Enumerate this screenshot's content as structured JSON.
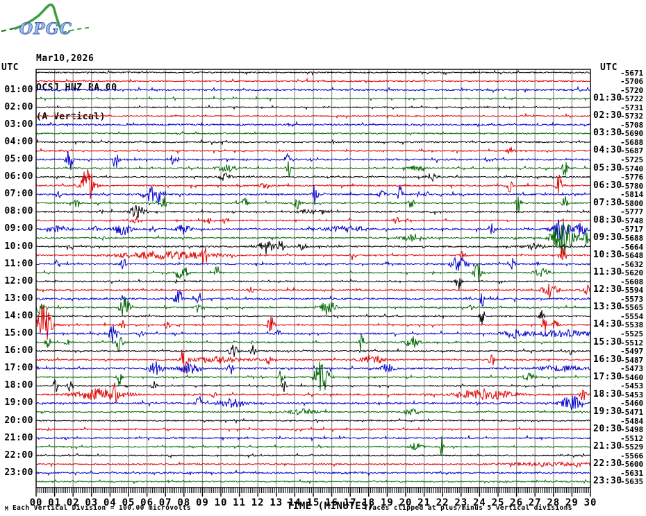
{
  "header": {
    "logo_text": "OPGC",
    "date": "Mar10,2026",
    "station": "OCSJ HNZ RA 00",
    "component": "(A Vertical)"
  },
  "axes": {
    "left_unit": "UTC",
    "right_unit": "UTC",
    "left_labels": [
      "01:00",
      "02:00",
      "03:00",
      "04:00",
      "05:00",
      "06:00",
      "07:00",
      "08:00",
      "09:00",
      "10:00",
      "11:00",
      "12:00",
      "13:00",
      "14:00",
      "15:00",
      "16:00",
      "17:00",
      "18:00",
      "19:00",
      "20:00",
      "21:00",
      "22:00",
      "23:00"
    ],
    "right_labels": [
      "01:30",
      "02:30",
      "03:30",
      "04:30",
      "05:30",
      "06:30",
      "07:30",
      "08:30",
      "09:30",
      "10:30",
      "11:30",
      "12:30",
      "13:30",
      "14:30",
      "15:30",
      "16:30",
      "17:30",
      "18:30",
      "19:30",
      "20:30",
      "21:30",
      "22:30",
      "23:30"
    ],
    "minute_labels": [
      "00",
      "01",
      "02",
      "03",
      "04",
      "05",
      "06",
      "07",
      "08",
      "09",
      "10",
      "11",
      "12",
      "13",
      "14",
      "15",
      "16",
      "17",
      "18",
      "19",
      "20",
      "21",
      "22",
      "23",
      "24",
      "25",
      "26",
      "27",
      "28",
      "29",
      "30"
    ],
    "xlabel": "TIME (MINUTES)"
  },
  "footer": {
    "scale_note": "Each Vertical Division =  100.00 microvolts",
    "clip_note": "Traces clipped at plus/minus 5 vertical divisions",
    "corner_mark": "M"
  },
  "colors": {
    "trace_cycle": [
      "#000000",
      "#e00000",
      "#0000cc",
      "#006600"
    ],
    "grid": "#909090",
    "border": "#000000",
    "logo_green": "#3f9e3f",
    "logo_blue_fill": "#9dbce8",
    "logo_blue_stroke": "#3a5fae"
  },
  "chart_data": {
    "type": "line",
    "title": "OCSJ HNZ RA 00 (A Vertical) Mar10,2026",
    "x_range_minutes": [
      0,
      30
    ],
    "minutes_per_row": 30,
    "microvolts_per_division": 100.0,
    "clip_divisions": 5,
    "rows": [
      {
        "t": "00:00",
        "c": 0,
        "off": -5671,
        "n": 0.8,
        "ev": []
      },
      {
        "t": "00:30",
        "c": 1,
        "off": -5706,
        "n": 0.85,
        "ev": []
      },
      {
        "t": "01:00",
        "c": 2,
        "off": -5720,
        "n": 1.1,
        "ev": []
      },
      {
        "t": "01:30",
        "c": 3,
        "off": -5722,
        "n": 0.85,
        "ev": []
      },
      {
        "t": "02:00",
        "c": 0,
        "off": -5731,
        "n": 0.8,
        "ev": []
      },
      {
        "t": "02:30",
        "c": 1,
        "off": -5732,
        "n": 0.8,
        "ev": []
      },
      {
        "t": "03:00",
        "c": 2,
        "off": -5708,
        "n": 1.1,
        "ev": []
      },
      {
        "t": "03:30",
        "c": 3,
        "off": -5690,
        "n": 0.8,
        "ev": []
      },
      {
        "t": "04:00",
        "c": 0,
        "off": -5688,
        "n": 1.0,
        "ev": []
      },
      {
        "t": "04:30",
        "c": 1,
        "off": -5687,
        "n": 0.85,
        "ev": [
          [
            25.7,
            5,
            0.12
          ]
        ]
      },
      {
        "t": "05:00",
        "c": 2,
        "off": -5725,
        "n": 1.1,
        "ev": [
          [
            1.8,
            18,
            0.12
          ],
          [
            4.3,
            15,
            0.1
          ],
          [
            7.4,
            7,
            0.1
          ],
          [
            13.6,
            9,
            0.1
          ]
        ]
      },
      {
        "t": "05:30",
        "c": 3,
        "off": -5740,
        "n": 0.85,
        "ev": [
          [
            10.3,
            5,
            0.35
          ],
          [
            13.7,
            12,
            0.08
          ],
          [
            20.6,
            4,
            0.3
          ],
          [
            28.6,
            13,
            0.12
          ]
        ]
      },
      {
        "t": "06:00",
        "c": 0,
        "off": -5776,
        "n": 0.85,
        "ev": [
          [
            10.2,
            5,
            0.25
          ],
          [
            21.4,
            6,
            0.18
          ]
        ]
      },
      {
        "t": "06:30",
        "c": 1,
        "off": -5780,
        "n": 0.9,
        "ev": [
          [
            2.8,
            34,
            0.22
          ],
          [
            12.4,
            4,
            0.2
          ],
          [
            25.6,
            9,
            0.12
          ],
          [
            28.3,
            15,
            0.1
          ]
        ]
      },
      {
        "t": "07:00",
        "c": 2,
        "off": -5814,
        "n": 1.1,
        "ev": [
          [
            1.2,
            10,
            0.08
          ],
          [
            6.2,
            12,
            0.3
          ],
          [
            6.6,
            10,
            0.15
          ],
          [
            15.1,
            17,
            0.08
          ],
          [
            18.7,
            7,
            0.12
          ],
          [
            19.7,
            15,
            0.08
          ],
          [
            21.1,
            9,
            0.08
          ]
        ]
      },
      {
        "t": "07:30",
        "c": 3,
        "off": -5800,
        "n": 0.9,
        "ev": [
          [
            2.2,
            12,
            0.08
          ],
          [
            6.9,
            10,
            0.1
          ],
          [
            11.3,
            8,
            0.1
          ],
          [
            14.1,
            10,
            0.1
          ],
          [
            20.3,
            8,
            0.1
          ],
          [
            26.1,
            17,
            0.1
          ],
          [
            28.6,
            11,
            0.1
          ]
        ]
      },
      {
        "t": "08:00",
        "c": 0,
        "off": -5777,
        "n": 1.05,
        "ev": [
          [
            5.45,
            10,
            0.25
          ],
          [
            14.9,
            3,
            0.5
          ]
        ]
      },
      {
        "t": "08:30",
        "c": 1,
        "off": -5748,
        "n": 0.9,
        "ev": [
          [
            5.4,
            6,
            0.1
          ],
          [
            9.3,
            5,
            0.12
          ],
          [
            10.2,
            4,
            0.12
          ],
          [
            19.5,
            6,
            0.1
          ]
        ]
      },
      {
        "t": "09:00",
        "c": 2,
        "off": -5717,
        "n": 1.1,
        "ev": [
          [
            1.2,
            4,
            0.4
          ],
          [
            3.1,
            5,
            0.15
          ],
          [
            4.7,
            17,
            0.25
          ],
          [
            8.0,
            7,
            0.25
          ],
          [
            16.8,
            4,
            0.8
          ],
          [
            24.7,
            8,
            0.1
          ],
          [
            28.4,
            16,
            0.3
          ],
          [
            29.5,
            10,
            0.2
          ]
        ]
      },
      {
        "t": "09:30",
        "c": 3,
        "off": -5688,
        "n": 0.85,
        "ev": [
          [
            3.6,
            4,
            0.1
          ],
          [
            20.5,
            6,
            0.4
          ],
          [
            28.5,
            27,
            0.4
          ],
          [
            29.8,
            8,
            0.15
          ]
        ]
      },
      {
        "t": "10:00",
        "c": 0,
        "off": -5664,
        "n": 1.05,
        "ev": [
          [
            1.9,
            4,
            0.1
          ],
          [
            12.5,
            9,
            0.3
          ],
          [
            13.3,
            8,
            0.12
          ],
          [
            14.4,
            8,
            0.12
          ],
          [
            27.0,
            4,
            0.4
          ]
        ]
      },
      {
        "t": "10:30",
        "c": 1,
        "off": -5648,
        "n": 0.9,
        "ev": [
          [
            6.0,
            4,
            1.2
          ],
          [
            8.3,
            4,
            1.2
          ],
          [
            9.1,
            18,
            0.08
          ],
          [
            17.1,
            7,
            0.08
          ],
          [
            23.1,
            7,
            0.1
          ],
          [
            28.5,
            14,
            0.12
          ]
        ]
      },
      {
        "t": "11:00",
        "c": 2,
        "off": -5632,
        "n": 1.1,
        "ev": [
          [
            1.05,
            8,
            0.08
          ],
          [
            4.7,
            7,
            0.1
          ],
          [
            22.85,
            12,
            0.25
          ],
          [
            25.8,
            8,
            0.1
          ]
        ]
      },
      {
        "t": "11:30",
        "c": 3,
        "off": -5620,
        "n": 0.85,
        "ev": [
          [
            7.7,
            9,
            0.12
          ],
          [
            8.1,
            7,
            0.12
          ],
          [
            9.8,
            13,
            0.08
          ],
          [
            23.9,
            13,
            0.15
          ],
          [
            27.4,
            6,
            0.25
          ]
        ]
      },
      {
        "t": "12:00",
        "c": 0,
        "off": -5608,
        "n": 0.85,
        "ev": [
          [
            22.85,
            13,
            0.1
          ]
        ]
      },
      {
        "t": "12:30",
        "c": 1,
        "off": -5594,
        "n": 0.85,
        "ev": [
          [
            11.6,
            5,
            0.1
          ],
          [
            27.8,
            12,
            0.25
          ],
          [
            29.8,
            9,
            0.1
          ]
        ]
      },
      {
        "t": "13:00",
        "c": 2,
        "off": -5573,
        "n": 1.1,
        "ev": [
          [
            4.7,
            6,
            0.1
          ],
          [
            7.7,
            23,
            0.12
          ],
          [
            8.8,
            15,
            0.08
          ],
          [
            24.15,
            13,
            0.08
          ]
        ]
      },
      {
        "t": "13:30",
        "c": 3,
        "off": -5565,
        "n": 0.85,
        "ev": [
          [
            0.2,
            10,
            0.1
          ],
          [
            4.8,
            21,
            0.15
          ],
          [
            8.8,
            9,
            0.1
          ],
          [
            15.8,
            11,
            0.25
          ],
          [
            23.6,
            6,
            0.1
          ]
        ]
      },
      {
        "t": "14:00",
        "c": 0,
        "off": -5554,
        "n": 0.9,
        "ev": [
          [
            24.15,
            14,
            0.08
          ],
          [
            27.35,
            9,
            0.08
          ]
        ]
      },
      {
        "t": "14:30",
        "c": 1,
        "off": -5538,
        "n": 0.9,
        "ev": [
          [
            0.35,
            33,
            0.3
          ],
          [
            4.7,
            7,
            0.1
          ],
          [
            7.1,
            6,
            0.1
          ],
          [
            12.7,
            15,
            0.12
          ],
          [
            27.5,
            14,
            0.08
          ],
          [
            28.1,
            7,
            0.1
          ]
        ]
      },
      {
        "t": "15:00",
        "c": 2,
        "off": -5525,
        "n": 1.1,
        "ev": [
          [
            4.15,
            14,
            0.18
          ],
          [
            5.7,
            6,
            0.1
          ],
          [
            13.1,
            6,
            0.1
          ],
          [
            25.9,
            6,
            0.4
          ],
          [
            28.4,
            4,
            1.2
          ]
        ]
      },
      {
        "t": "15:30",
        "c": 3,
        "off": -5512,
        "n": 0.85,
        "ev": [
          [
            0.65,
            8,
            0.1
          ],
          [
            1.7,
            4,
            0.1
          ],
          [
            4.5,
            14,
            0.12
          ],
          [
            17.6,
            17,
            0.08
          ],
          [
            20.35,
            8,
            0.25
          ]
        ]
      },
      {
        "t": "16:00",
        "c": 0,
        "off": -5497,
        "n": 0.85,
        "ev": [
          [
            10.7,
            9,
            0.15
          ],
          [
            11.75,
            8,
            0.1
          ],
          [
            28.85,
            9,
            0.08
          ]
        ]
      },
      {
        "t": "16:30",
        "c": 1,
        "off": -5487,
        "n": 0.9,
        "ev": [
          [
            8.0,
            21,
            0.12
          ],
          [
            9.9,
            4,
            1.0
          ],
          [
            12.6,
            7,
            0.1
          ],
          [
            18.2,
            7,
            0.4
          ],
          [
            24.65,
            15,
            0.08
          ]
        ]
      },
      {
        "t": "17:00",
        "c": 2,
        "off": -5473,
        "n": 1.1,
        "ev": [
          [
            6.5,
            10,
            0.25
          ],
          [
            8.3,
            7,
            0.4
          ],
          [
            10.5,
            13,
            0.1
          ],
          [
            18.95,
            7,
            0.25
          ],
          [
            28.4,
            4,
            0.8
          ]
        ]
      },
      {
        "t": "17:30",
        "c": 3,
        "off": -5460,
        "n": 0.85,
        "ev": [
          [
            4.5,
            12,
            0.08
          ],
          [
            13.25,
            10,
            0.1
          ],
          [
            15.45,
            26,
            0.25
          ],
          [
            26.7,
            5,
            0.25
          ]
        ]
      },
      {
        "t": "18:00",
        "c": 0,
        "off": -5453,
        "n": 0.85,
        "ev": [
          [
            1.05,
            12,
            0.08
          ],
          [
            1.85,
            8,
            0.1
          ],
          [
            6.4,
            7,
            0.08
          ],
          [
            13.4,
            10,
            0.08
          ]
        ]
      },
      {
        "t": "18:30",
        "c": 1,
        "off": -5453,
        "n": 1.0,
        "ev": [
          [
            3.55,
            9,
            0.9
          ],
          [
            4.25,
            12,
            0.08
          ],
          [
            9.6,
            4,
            0.1
          ],
          [
            24.3,
            8,
            1.0
          ],
          [
            29.6,
            13,
            0.1
          ]
        ]
      },
      {
        "t": "19:00",
        "c": 2,
        "off": -5460,
        "n": 1.1,
        "ev": [
          [
            8.8,
            17,
            0.08
          ],
          [
            10.6,
            6,
            0.5
          ],
          [
            28.9,
            12,
            0.35
          ]
        ]
      },
      {
        "t": "19:30",
        "c": 3,
        "off": -5471,
        "n": 0.85,
        "ev": [
          [
            14.4,
            4,
            0.5
          ],
          [
            20.4,
            4,
            0.3
          ]
        ]
      },
      {
        "t": "20:00",
        "c": 0,
        "off": -5484,
        "n": 0.8,
        "ev": []
      },
      {
        "t": "20:30",
        "c": 1,
        "off": -5498,
        "n": 0.9,
        "ev": []
      },
      {
        "t": "21:00",
        "c": 2,
        "off": -5512,
        "n": 1.0,
        "ev": []
      },
      {
        "t": "21:30",
        "c": 3,
        "off": -5529,
        "n": 0.85,
        "ev": [
          [
            20.55,
            5,
            0.25
          ],
          [
            21.95,
            15,
            0.05
          ]
        ]
      },
      {
        "t": "22:00",
        "c": 0,
        "off": -5566,
        "n": 0.8,
        "ev": []
      },
      {
        "t": "22:30",
        "c": 1,
        "off": -5600,
        "n": 0.9,
        "ev": [
          [
            28.5,
            2.5,
            2.0
          ]
        ]
      },
      {
        "t": "23:00",
        "c": 2,
        "off": -5631,
        "n": 1.0,
        "ev": []
      },
      {
        "t": "23:30",
        "c": 3,
        "off": -5635,
        "n": 0.85,
        "ev": []
      }
    ]
  }
}
